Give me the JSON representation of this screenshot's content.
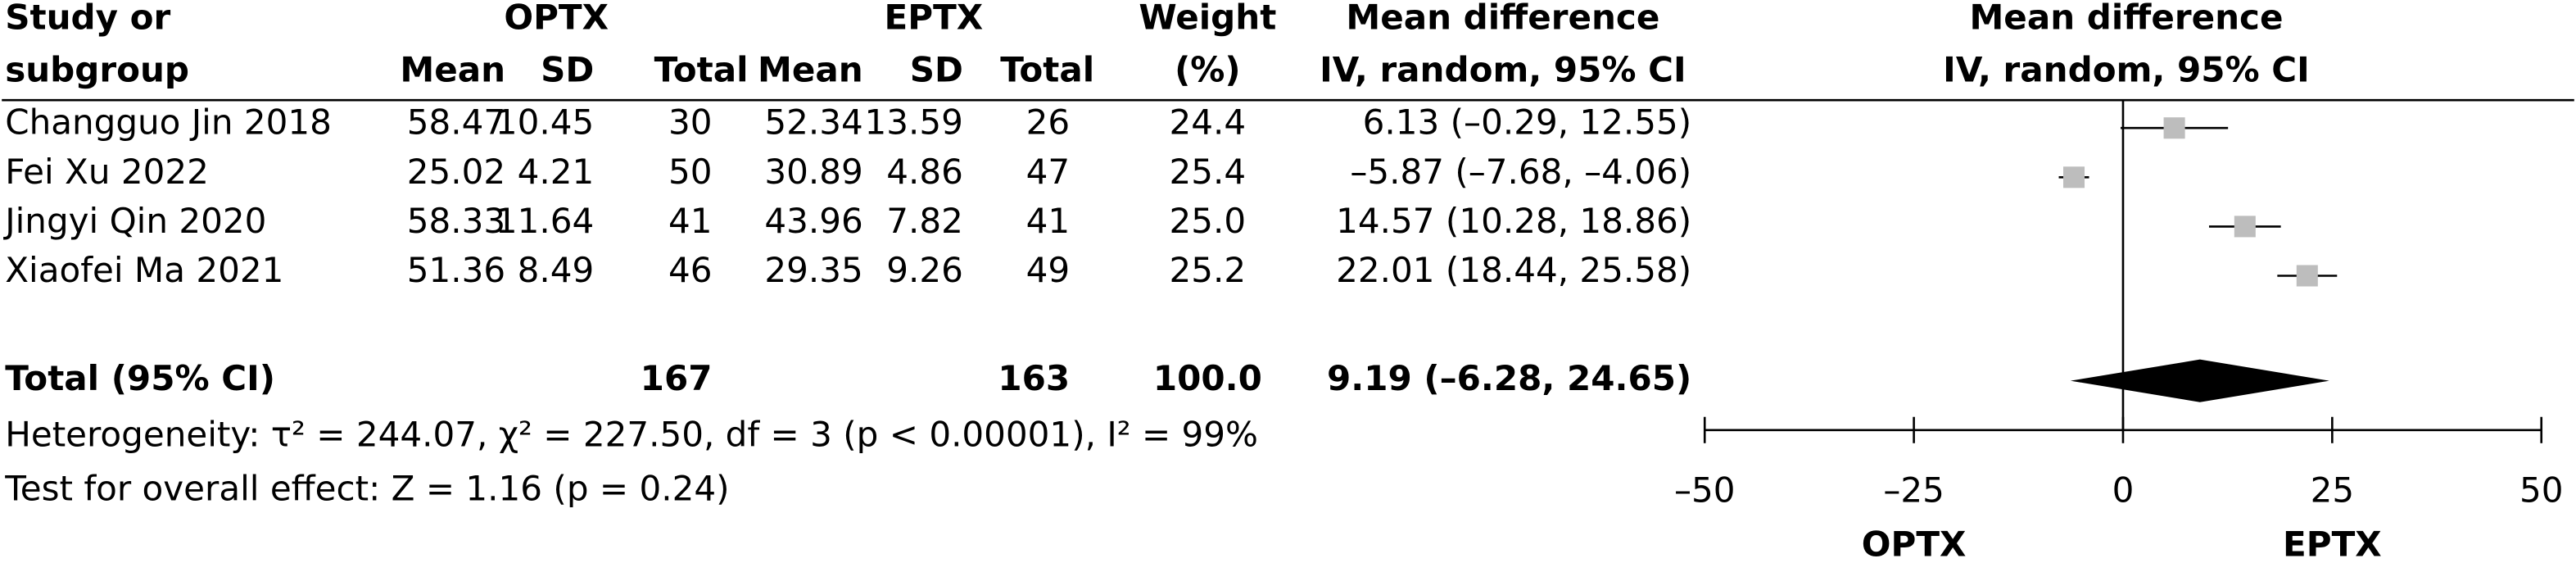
{
  "chart_data": {
    "type": "forest",
    "headers": {
      "study": [
        "Study or",
        "subgroup"
      ],
      "group1": "OPTX",
      "group2": "EPTX",
      "mean": "Mean",
      "sd": "SD",
      "total": "Total",
      "weight": [
        "Weight",
        "(%)"
      ],
      "effect": [
        "Mean difference",
        "IV, random, 95% CI"
      ],
      "plot": [
        "Mean difference",
        "IV, random, 95% CI"
      ]
    },
    "studies": [
      {
        "name": "Changguo Jin 2018",
        "optx_mean": 58.47,
        "optx_sd": 10.45,
        "optx_total": 30,
        "eptx_mean": 52.34,
        "eptx_sd": 13.59,
        "eptx_total": 26,
        "weight": "24.4",
        "md": 6.13,
        "ci_lower": -0.29,
        "ci_upper": 12.55,
        "ci_label": "6.13 (–0.29, 12.55)"
      },
      {
        "name": "Fei Xu 2022",
        "optx_mean": 25.02,
        "optx_sd": 4.21,
        "optx_total": 50,
        "eptx_mean": 30.89,
        "eptx_sd": 4.86,
        "eptx_total": 47,
        "weight": "25.4",
        "md": -5.87,
        "ci_lower": -7.68,
        "ci_upper": -4.06,
        "ci_label": "–5.87 (–7.68, –4.06)"
      },
      {
        "name": "Jingyi Qin 2020",
        "optx_mean": 58.33,
        "optx_sd": 11.64,
        "optx_total": 41,
        "eptx_mean": 43.96,
        "eptx_sd": 7.82,
        "eptx_total": 41,
        "weight": "25.0",
        "md": 14.57,
        "ci_lower": 10.28,
        "ci_upper": 18.86,
        "ci_label": "14.57 (10.28, 18.86)"
      },
      {
        "name": "Xiaofei Ma 2021",
        "optx_mean": 51.36,
        "optx_sd": 8.49,
        "optx_total": 46,
        "eptx_mean": 29.35,
        "eptx_sd": 9.26,
        "eptx_total": 49,
        "weight": "25.2",
        "md": 22.01,
        "ci_lower": 18.44,
        "ci_upper": 25.58,
        "ci_label": "22.01 (18.44, 25.58)"
      }
    ],
    "total": {
      "name": "Total (95% CI)",
      "optx_total": 167,
      "eptx_total": 163,
      "weight": "100.0",
      "md": 9.19,
      "ci_lower": -6.28,
      "ci_upper": 24.65,
      "ci_label": "9.19 (–6.28, 24.65)"
    },
    "heterogeneity": "Heterogeneity: τ² = 244.07, χ² = 227.50, df = 3 (p < 0.00001), I² = 99%",
    "overall_effect": "Test for overall effect: Z = 1.16 (p = 0.24)",
    "xlim": [
      -50,
      50
    ],
    "xticks": [
      {
        "value": -50,
        "label": "–50"
      },
      {
        "value": -25,
        "label": "–25"
      },
      0,
      25,
      50
    ],
    "favours": [
      "OPTX",
      "EPTX"
    ],
    "square_color": "#bdbdbd",
    "diamond_color": "#000000"
  }
}
